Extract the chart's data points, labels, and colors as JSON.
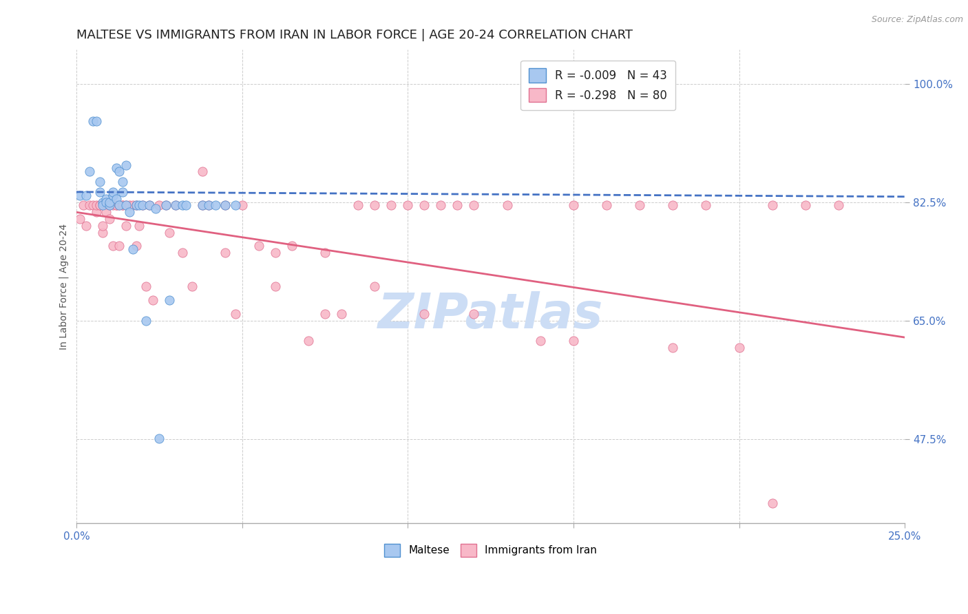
{
  "title": "MALTESE VS IMMIGRANTS FROM IRAN IN LABOR FORCE | AGE 20-24 CORRELATION CHART",
  "source": "Source: ZipAtlas.com",
  "ylabel": "In Labor Force | Age 20-24",
  "xlim": [
    0.0,
    0.25
  ],
  "ylim": [
    0.35,
    1.05
  ],
  "xticks": [
    0.0,
    0.05,
    0.1,
    0.15,
    0.2,
    0.25
  ],
  "xticklabels": [
    "0.0%",
    "",
    "",
    "",
    "",
    "25.0%"
  ],
  "yticks": [
    0.475,
    0.65,
    0.825,
    1.0
  ],
  "yticklabels": [
    "47.5%",
    "65.0%",
    "82.5%",
    "100.0%"
  ],
  "title_fontsize": 13,
  "axis_label_fontsize": 10,
  "tick_fontsize": 11,
  "background_color": "#ffffff",
  "grid_color": "#cccccc",
  "legend_R1": "R = -0.009",
  "legend_N1": "N = 43",
  "legend_R2": "R = -0.298",
  "legend_N2": "N = 80",
  "blue_fill": "#a8c8f0",
  "blue_edge": "#5090d0",
  "pink_fill": "#f8b8c8",
  "pink_edge": "#e07090",
  "blue_line_color": "#4472c4",
  "pink_line_color": "#e06080",
  "label_color": "#4472c4",
  "maltese_x": [
    0.001,
    0.003,
    0.004,
    0.005,
    0.006,
    0.007,
    0.007,
    0.008,
    0.008,
    0.009,
    0.009,
    0.01,
    0.01,
    0.011,
    0.011,
    0.011,
    0.012,
    0.012,
    0.013,
    0.013,
    0.014,
    0.014,
    0.015,
    0.015,
    0.016,
    0.017,
    0.018,
    0.019,
    0.02,
    0.021,
    0.022,
    0.024,
    0.025,
    0.027,
    0.028,
    0.03,
    0.032,
    0.033,
    0.038,
    0.04,
    0.042,
    0.045,
    0.048
  ],
  "maltese_y": [
    0.835,
    0.835,
    0.87,
    0.945,
    0.945,
    0.84,
    0.855,
    0.825,
    0.82,
    0.83,
    0.825,
    0.82,
    0.825,
    0.835,
    0.835,
    0.84,
    0.83,
    0.875,
    0.87,
    0.82,
    0.855,
    0.84,
    0.82,
    0.88,
    0.81,
    0.755,
    0.82,
    0.82,
    0.82,
    0.65,
    0.82,
    0.815,
    0.476,
    0.82,
    0.68,
    0.82,
    0.82,
    0.82,
    0.82,
    0.82,
    0.82,
    0.82,
    0.82
  ],
  "iran_x": [
    0.001,
    0.002,
    0.003,
    0.004,
    0.005,
    0.006,
    0.006,
    0.007,
    0.007,
    0.008,
    0.008,
    0.009,
    0.009,
    0.01,
    0.01,
    0.011,
    0.011,
    0.012,
    0.012,
    0.013,
    0.013,
    0.014,
    0.014,
    0.015,
    0.015,
    0.016,
    0.017,
    0.018,
    0.018,
    0.019,
    0.02,
    0.021,
    0.022,
    0.023,
    0.025,
    0.027,
    0.028,
    0.03,
    0.032,
    0.035,
    0.038,
    0.04,
    0.045,
    0.048,
    0.05,
    0.055,
    0.06,
    0.065,
    0.07,
    0.075,
    0.08,
    0.085,
    0.09,
    0.095,
    0.1,
    0.105,
    0.11,
    0.115,
    0.12,
    0.13,
    0.14,
    0.15,
    0.16,
    0.17,
    0.18,
    0.19,
    0.2,
    0.21,
    0.22,
    0.23,
    0.038,
    0.045,
    0.06,
    0.075,
    0.09,
    0.105,
    0.12,
    0.15,
    0.18,
    0.21
  ],
  "iran_y": [
    0.8,
    0.82,
    0.79,
    0.82,
    0.82,
    0.81,
    0.82,
    0.82,
    0.82,
    0.78,
    0.79,
    0.82,
    0.81,
    0.8,
    0.82,
    0.76,
    0.82,
    0.82,
    0.82,
    0.82,
    0.76,
    0.82,
    0.82,
    0.82,
    0.79,
    0.82,
    0.82,
    0.76,
    0.82,
    0.79,
    0.82,
    0.7,
    0.82,
    0.68,
    0.82,
    0.82,
    0.78,
    0.82,
    0.75,
    0.7,
    0.82,
    0.82,
    0.75,
    0.66,
    0.82,
    0.76,
    0.7,
    0.76,
    0.62,
    0.66,
    0.66,
    0.82,
    0.82,
    0.82,
    0.82,
    0.82,
    0.82,
    0.82,
    0.82,
    0.82,
    0.62,
    0.82,
    0.82,
    0.82,
    0.82,
    0.82,
    0.61,
    0.82,
    0.82,
    0.82,
    0.87,
    0.82,
    0.75,
    0.75,
    0.7,
    0.66,
    0.66,
    0.62,
    0.61,
    0.38
  ],
  "blue_trend_x": [
    0.0,
    0.25
  ],
  "blue_trend_y": [
    0.84,
    0.833
  ],
  "pink_trend_x": [
    0.0,
    0.25
  ],
  "pink_trend_y": [
    0.81,
    0.625
  ],
  "watermark": "ZIPatlas",
  "watermark_color": "#ccddf5",
  "watermark_fontsize": 52
}
